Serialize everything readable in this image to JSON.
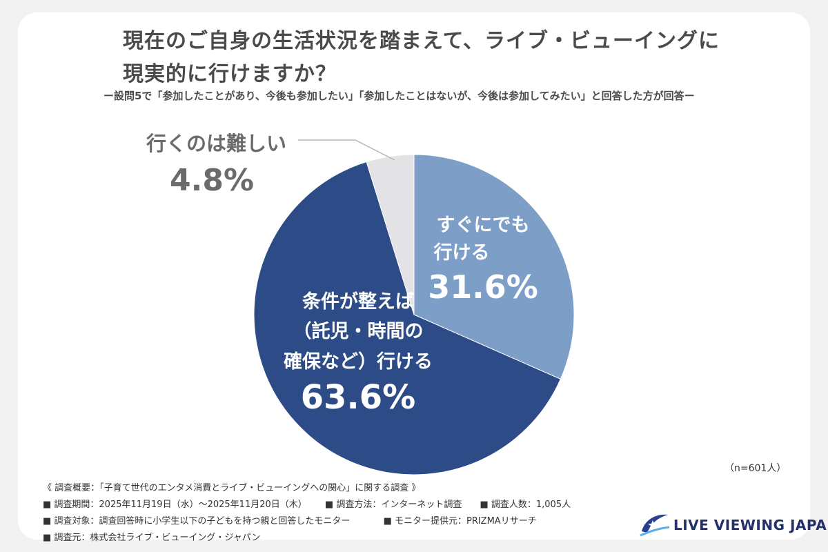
{
  "title_lines": [
    "現在のご自身の生活状況を踏まえて、ライブ・ビューイングに",
    "現実的に行けますか？"
  ],
  "subtitle": "ー設問5で「参加したことがあり、今後も参加したい」「参加したことはないが、今後は参加してみたい」と回答した方が回答ー",
  "chart_data": {
    "type": "pie",
    "title": "現在のご自身の生活状況を踏まえて、ライブ・ビューイングに現実的に行けますか？",
    "start": "12 o'clock",
    "direction": "clockwise",
    "slices": [
      {
        "label_lines": [
          "すぐにでも",
          "行ける"
        ],
        "value": 31.6,
        "value_label": "31.6%",
        "color": "#7c9ec7"
      },
      {
        "label_lines": [
          "条件が整えば",
          "（託児・時間の",
          "確保など）行ける"
        ],
        "value": 63.6,
        "value_label": "63.6%",
        "color": "#2d4b86"
      },
      {
        "label_lines": [
          "行くのは難しい"
        ],
        "value": 4.8,
        "value_label": "4.8%",
        "color": "#e3e3e6"
      }
    ]
  },
  "sample_size": "（n=601人）",
  "footer": {
    "overview": "《 調査概要：「子育て世代のエンタメ消費とライブ・ビューイングへの関心」に関する調査 》",
    "period": "■ 調査期間：2025年11月19日（水）～2025年11月20日（木）",
    "method": "■ 調査方法：インターネット調査",
    "count": "■ 調査人数：1,005人",
    "target": "■ 調査対象：調査回答時に小学生以下の子どもを持つ親と回答したモニター",
    "provider": "■ モニター提供元：PRIZMAリサーチ",
    "conductor": "■ 調査元：株式会社ライブ・ビューイング・ジャパン"
  },
  "logo": {
    "text": "LIVE VIEWING JAPAN",
    "color": "#24306a"
  }
}
